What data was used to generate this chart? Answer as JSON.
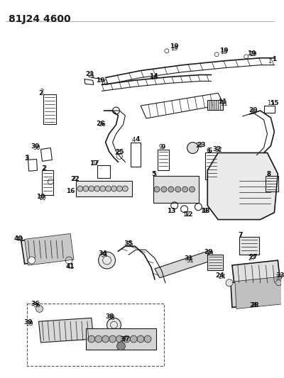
{
  "title": "81J24 4600",
  "bg_color": "#ffffff",
  "fig_width": 4.0,
  "fig_height": 5.33,
  "dpi": 100,
  "line_color": "#1a1a1a",
  "label_fontsize": 6.0,
  "label_color": "#111111",
  "title_fontsize": 10,
  "title_fontweight": "bold"
}
